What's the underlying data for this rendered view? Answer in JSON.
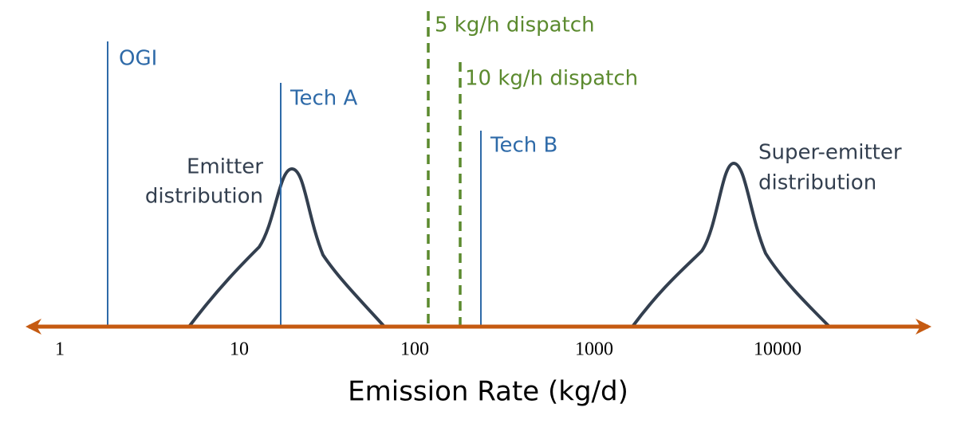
{
  "axis": {
    "label": "Emission Rate (kg/d)",
    "ticks": [
      "1",
      "10",
      "100",
      "1000",
      "10000"
    ]
  },
  "markers": [
    {
      "label": "OGI"
    },
    {
      "label": "Tech A"
    },
    {
      "label": "Tech B"
    },
    {
      "label": "5 kg/h dispatch"
    },
    {
      "label": "10 kg/h dispatch"
    }
  ],
  "distributions": [
    {
      "label_lines": [
        "Emitter",
        "distribution"
      ]
    },
    {
      "label_lines": [
        "Super-emitter",
        "distribution"
      ]
    }
  ]
}
